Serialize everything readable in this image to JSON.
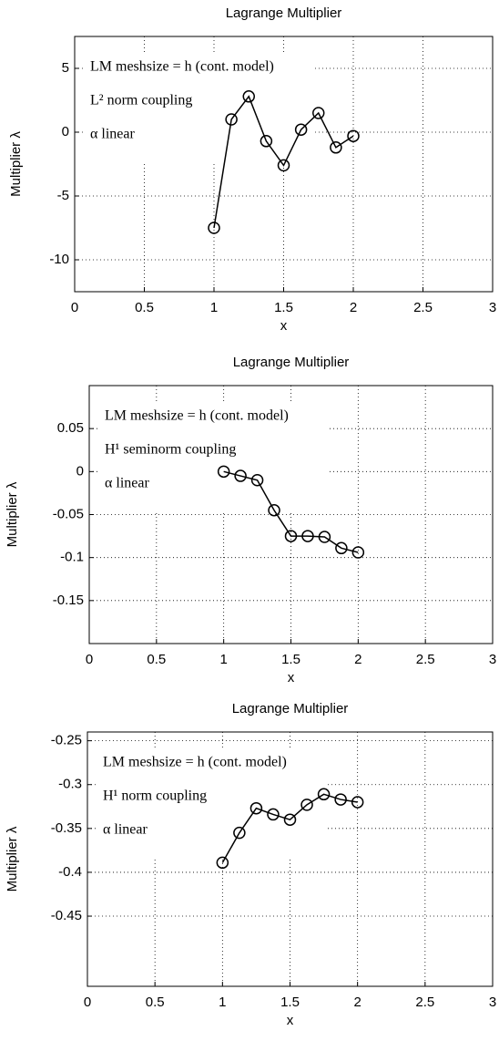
{
  "chart_data": [
    {
      "type": "line",
      "title": "Lagrange Multiplier",
      "xlabel": "x",
      "ylabel": "Multiplier λ",
      "annotations": [
        "LM meshsize = h (cont. model)",
        "L² norm coupling",
        "α linear"
      ],
      "x": [
        1,
        1.125,
        1.25,
        1.375,
        1.5,
        1.625,
        1.75,
        1.875,
        2
      ],
      "series": [
        {
          "color": "#000000",
          "values": [
            -7.5,
            1.0,
            2.8,
            -0.7,
            -2.6,
            0.2,
            1.5,
            -1.2,
            -0.3
          ]
        }
      ],
      "xlim": [
        0,
        3
      ],
      "xticks": [
        0,
        0.5,
        1,
        1.5,
        2,
        2.5,
        3
      ],
      "ylim": [
        -12.5,
        7.5
      ],
      "yticks": [
        -10,
        -5,
        0,
        5
      ],
      "grid": true
    },
    {
      "type": "line",
      "title": "Lagrange Multiplier",
      "xlabel": "x",
      "ylabel": "Multiplier λ",
      "annotations": [
        "LM meshsize = h (cont. model)",
        "H¹ seminorm coupling",
        "α linear"
      ],
      "x": [
        1,
        1.125,
        1.25,
        1.375,
        1.5,
        1.625,
        1.75,
        1.875,
        2
      ],
      "series": [
        {
          "color": "#000000",
          "values": [
            0,
            -0.005,
            -0.01,
            -0.045,
            -0.075,
            -0.075,
            -0.076,
            -0.089,
            -0.094
          ]
        }
      ],
      "xlim": [
        0,
        3
      ],
      "xticks": [
        0,
        0.5,
        1,
        1.5,
        2,
        2.5,
        3
      ],
      "ylim": [
        -0.2,
        0.1
      ],
      "yticks": [
        -0.15,
        -0.1,
        -0.05,
        0,
        0.05
      ],
      "grid": true
    },
    {
      "type": "line",
      "title": "Lagrange Multiplier",
      "xlabel": "x",
      "ylabel": "Multiplier λ",
      "annotations": [
        "LM meshsize = h (cont. model)",
        "H¹ norm coupling",
        "α linear"
      ],
      "x": [
        1,
        1.125,
        1.25,
        1.375,
        1.5,
        1.625,
        1.75,
        1.875,
        2
      ],
      "series": [
        {
          "color": "#000000",
          "values": [
            -0.389,
            -0.355,
            -0.327,
            -0.334,
            -0.34,
            -0.323,
            -0.311,
            -0.317,
            -0.32
          ]
        }
      ],
      "xlim": [
        0,
        3
      ],
      "xticks": [
        0,
        0.5,
        1,
        1.5,
        2,
        2.5,
        3
      ],
      "ylim": [
        -0.53,
        -0.24
      ],
      "yticks": [
        -0.45,
        -0.4,
        -0.35,
        -0.3,
        -0.25
      ],
      "grid": true
    }
  ]
}
